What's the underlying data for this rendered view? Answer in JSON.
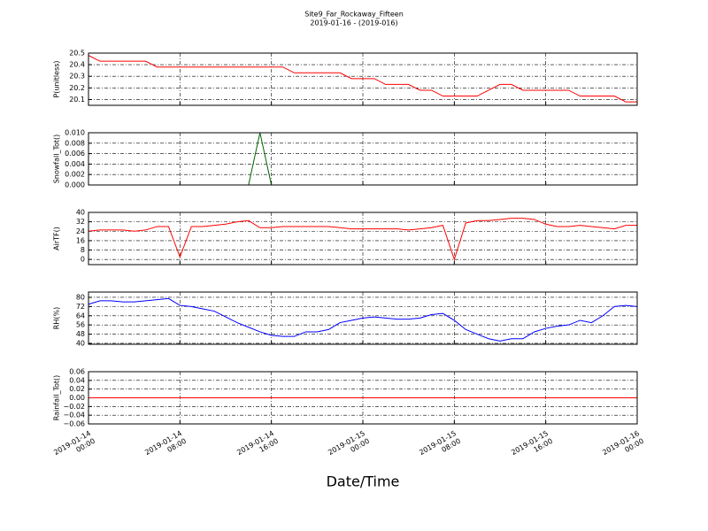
{
  "chart_data": [
    {
      "type": "line",
      "title": "Site9_Far_Rockaway_Fifteen",
      "subtitle": "2019-01-16 - (2019-016)",
      "ylabel": "P(unitless)",
      "color": "#ff0000",
      "x": [
        "2019-01-14 00:00",
        "2019-01-14 01:00",
        "2019-01-14 02:00",
        "2019-01-14 03:00",
        "2019-01-14 04:00",
        "2019-01-14 05:00",
        "2019-01-14 06:00",
        "2019-01-14 07:00",
        "2019-01-14 08:00",
        "2019-01-14 09:00",
        "2019-01-14 10:00",
        "2019-01-14 11:00",
        "2019-01-14 12:00",
        "2019-01-14 13:00",
        "2019-01-14 14:00",
        "2019-01-14 15:00",
        "2019-01-14 16:00",
        "2019-01-14 17:00",
        "2019-01-14 18:00",
        "2019-01-14 19:00",
        "2019-01-14 20:00",
        "2019-01-14 21:00",
        "2019-01-14 22:00",
        "2019-01-14 23:00",
        "2019-01-15 00:00",
        "2019-01-15 01:00",
        "2019-01-15 02:00",
        "2019-01-15 03:00",
        "2019-01-15 04:00",
        "2019-01-15 05:00",
        "2019-01-15 06:00",
        "2019-01-15 07:00",
        "2019-01-15 08:00",
        "2019-01-15 09:00",
        "2019-01-15 10:00",
        "2019-01-15 11:00",
        "2019-01-15 12:00",
        "2019-01-15 13:00",
        "2019-01-15 14:00",
        "2019-01-15 15:00",
        "2019-01-15 16:00",
        "2019-01-15 17:00",
        "2019-01-15 18:00",
        "2019-01-15 19:00",
        "2019-01-15 20:00",
        "2019-01-15 21:00",
        "2019-01-15 22:00",
        "2019-01-15 23:00",
        "2019-01-16 00:00"
      ],
      "values": [
        20.48,
        20.43,
        20.43,
        20.43,
        20.43,
        20.43,
        20.38,
        20.38,
        20.38,
        20.38,
        20.38,
        20.38,
        20.38,
        20.38,
        20.38,
        20.38,
        20.38,
        20.38,
        20.33,
        20.33,
        20.33,
        20.33,
        20.33,
        20.28,
        20.28,
        20.28,
        20.23,
        20.23,
        20.23,
        20.18,
        20.18,
        20.13,
        20.13,
        20.13,
        20.13,
        20.18,
        20.23,
        20.23,
        20.18,
        20.18,
        20.18,
        20.18,
        20.18,
        20.13,
        20.13,
        20.13,
        20.13,
        20.08,
        20.08
      ],
      "ylim": [
        20.05,
        20.5
      ],
      "yticks": [
        20.1,
        20.2,
        20.3,
        20.4,
        20.5
      ],
      "grid": true
    },
    {
      "type": "line",
      "ylabel": "Snowfall_Tot()",
      "color": "#006400",
      "x": [
        "2019-01-14 00:00",
        "2019-01-14 01:00",
        "2019-01-14 02:00",
        "2019-01-14 03:00",
        "2019-01-14 04:00",
        "2019-01-14 05:00",
        "2019-01-14 06:00",
        "2019-01-14 07:00",
        "2019-01-14 08:00",
        "2019-01-14 09:00",
        "2019-01-14 10:00",
        "2019-01-14 11:00",
        "2019-01-14 12:00",
        "2019-01-14 13:00",
        "2019-01-14 14:00",
        "2019-01-14 15:00",
        "2019-01-14 16:00",
        "2019-01-14 17:00",
        "2019-01-14 18:00",
        "2019-01-14 19:00",
        "2019-01-14 20:00",
        "2019-01-14 21:00",
        "2019-01-14 22:00",
        "2019-01-14 23:00",
        "2019-01-15 00:00",
        "2019-01-15 01:00",
        "2019-01-15 02:00",
        "2019-01-15 03:00",
        "2019-01-15 04:00",
        "2019-01-15 05:00",
        "2019-01-15 06:00",
        "2019-01-15 07:00",
        "2019-01-15 08:00",
        "2019-01-15 09:00",
        "2019-01-15 10:00",
        "2019-01-15 11:00",
        "2019-01-15 12:00",
        "2019-01-15 13:00",
        "2019-01-15 14:00",
        "2019-01-15 15:00",
        "2019-01-15 16:00",
        "2019-01-15 17:00",
        "2019-01-15 18:00",
        "2019-01-15 19:00",
        "2019-01-15 20:00",
        "2019-01-15 21:00",
        "2019-01-15 22:00",
        "2019-01-15 23:00",
        "2019-01-16 00:00"
      ],
      "values": [
        0,
        0,
        0,
        0,
        0,
        0,
        0,
        0,
        0,
        0,
        0,
        0,
        0,
        0,
        0,
        0.01,
        0,
        0,
        0,
        0,
        0,
        0,
        0,
        0,
        0,
        0,
        0,
        0,
        0,
        0,
        0,
        0,
        0,
        0,
        0,
        0,
        0,
        0,
        0,
        0,
        0,
        0,
        0,
        0,
        0,
        0,
        0,
        0,
        0
      ],
      "ylim": [
        0,
        0.01
      ],
      "yticks": [
        {
          "value": 0,
          "label": "0.000"
        },
        {
          "value": 0.002,
          "label": "0.002"
        },
        {
          "value": 0.004,
          "label": "0.004"
        },
        {
          "value": 0.006,
          "label": "0.006"
        },
        {
          "value": 0.008,
          "label": "0.008"
        },
        {
          "value": 0.01,
          "label": "0.010"
        }
      ],
      "grid": true
    },
    {
      "type": "line",
      "ylabel": "AirTF()",
      "color": "#ff0000",
      "x": [
        "2019-01-14 00:00",
        "2019-01-14 01:00",
        "2019-01-14 02:00",
        "2019-01-14 03:00",
        "2019-01-14 04:00",
        "2019-01-14 05:00",
        "2019-01-14 06:00",
        "2019-01-14 07:00",
        "2019-01-14 08:00",
        "2019-01-14 09:00",
        "2019-01-14 10:00",
        "2019-01-14 11:00",
        "2019-01-14 12:00",
        "2019-01-14 13:00",
        "2019-01-14 14:00",
        "2019-01-14 15:00",
        "2019-01-14 16:00",
        "2019-01-14 17:00",
        "2019-01-14 18:00",
        "2019-01-14 19:00",
        "2019-01-14 20:00",
        "2019-01-14 21:00",
        "2019-01-14 22:00",
        "2019-01-14 23:00",
        "2019-01-15 00:00",
        "2019-01-15 01:00",
        "2019-01-15 02:00",
        "2019-01-15 03:00",
        "2019-01-15 04:00",
        "2019-01-15 05:00",
        "2019-01-15 06:00",
        "2019-01-15 07:00",
        "2019-01-15 08:00",
        "2019-01-15 09:00",
        "2019-01-15 10:00",
        "2019-01-15 11:00",
        "2019-01-15 12:00",
        "2019-01-15 13:00",
        "2019-01-15 14:00",
        "2019-01-15 15:00",
        "2019-01-15 16:00",
        "2019-01-15 17:00",
        "2019-01-15 18:00",
        "2019-01-15 19:00",
        "2019-01-15 20:00",
        "2019-01-15 21:00",
        "2019-01-15 22:00",
        "2019-01-15 23:00",
        "2019-01-16 00:00"
      ],
      "values": [
        24,
        25,
        25,
        25,
        24,
        25,
        28,
        28,
        2,
        28,
        28,
        29,
        30,
        32,
        33,
        27,
        27,
        28,
        28,
        28,
        28,
        28,
        27,
        26,
        26,
        26,
        26,
        26,
        25,
        26,
        27,
        29,
        0,
        31,
        33,
        33,
        34,
        35,
        35,
        34,
        30,
        28,
        28,
        29,
        28,
        27,
        26,
        29,
        29
      ],
      "ylim": [
        -4.4,
        40
      ],
      "yticks": [
        0,
        8,
        16,
        24,
        32,
        40
      ],
      "grid": true
    },
    {
      "type": "line",
      "ylabel": "RH(%)",
      "color": "#0000ff",
      "x": [
        "2019-01-14 00:00",
        "2019-01-14 01:00",
        "2019-01-14 02:00",
        "2019-01-14 03:00",
        "2019-01-14 04:00",
        "2019-01-14 05:00",
        "2019-01-14 06:00",
        "2019-01-14 07:00",
        "2019-01-14 08:00",
        "2019-01-14 09:00",
        "2019-01-14 10:00",
        "2019-01-14 11:00",
        "2019-01-14 12:00",
        "2019-01-14 13:00",
        "2019-01-14 14:00",
        "2019-01-14 15:00",
        "2019-01-14 16:00",
        "2019-01-14 17:00",
        "2019-01-14 18:00",
        "2019-01-14 19:00",
        "2019-01-14 20:00",
        "2019-01-14 21:00",
        "2019-01-14 22:00",
        "2019-01-14 23:00",
        "2019-01-15 00:00",
        "2019-01-15 01:00",
        "2019-01-15 02:00",
        "2019-01-15 03:00",
        "2019-01-15 04:00",
        "2019-01-15 05:00",
        "2019-01-15 06:00",
        "2019-01-15 07:00",
        "2019-01-15 08:00",
        "2019-01-15 09:00",
        "2019-01-15 10:00",
        "2019-01-15 11:00",
        "2019-01-15 12:00",
        "2019-01-15 13:00",
        "2019-01-15 14:00",
        "2019-01-15 15:00",
        "2019-01-15 16:00",
        "2019-01-15 17:00",
        "2019-01-15 18:00",
        "2019-01-15 19:00",
        "2019-01-15 20:00",
        "2019-01-15 21:00",
        "2019-01-15 22:00",
        "2019-01-15 23:00",
        "2019-01-16 00:00"
      ],
      "values": [
        74,
        77,
        77,
        76,
        76,
        77,
        78,
        79,
        73,
        72,
        70,
        68,
        63,
        58,
        54,
        50,
        47,
        46,
        46,
        50,
        50,
        52,
        58,
        60,
        62,
        63,
        62,
        61,
        61,
        62,
        65,
        66,
        60,
        52,
        48,
        44,
        42,
        44,
        44,
        50,
        53,
        55,
        56,
        60,
        58,
        64,
        72,
        73,
        72
      ],
      "ylim": [
        39.2,
        84.6
      ],
      "yticks": [
        40,
        48,
        56,
        64,
        72,
        80
      ],
      "grid": true
    },
    {
      "type": "line",
      "ylabel": "Rainfall_Tot()",
      "color": "#ff0000",
      "xlabel": "Date/Time",
      "x": [
        "2019-01-14 00:00",
        "2019-01-14 01:00",
        "2019-01-14 02:00",
        "2019-01-14 03:00",
        "2019-01-14 04:00",
        "2019-01-14 05:00",
        "2019-01-14 06:00",
        "2019-01-14 07:00",
        "2019-01-14 08:00",
        "2019-01-14 09:00",
        "2019-01-14 10:00",
        "2019-01-14 11:00",
        "2019-01-14 12:00",
        "2019-01-14 13:00",
        "2019-01-14 14:00",
        "2019-01-14 15:00",
        "2019-01-14 16:00",
        "2019-01-14 17:00",
        "2019-01-14 18:00",
        "2019-01-14 19:00",
        "2019-01-14 20:00",
        "2019-01-14 21:00",
        "2019-01-14 22:00",
        "2019-01-14 23:00",
        "2019-01-15 00:00",
        "2019-01-15 01:00",
        "2019-01-15 02:00",
        "2019-01-15 03:00",
        "2019-01-15 04:00",
        "2019-01-15 05:00",
        "2019-01-15 06:00",
        "2019-01-15 07:00",
        "2019-01-15 08:00",
        "2019-01-15 09:00",
        "2019-01-15 10:00",
        "2019-01-15 11:00",
        "2019-01-15 12:00",
        "2019-01-15 13:00",
        "2019-01-15 14:00",
        "2019-01-15 15:00",
        "2019-01-15 16:00",
        "2019-01-15 17:00",
        "2019-01-15 18:00",
        "2019-01-15 19:00",
        "2019-01-15 20:00",
        "2019-01-15 21:00",
        "2019-01-15 22:00",
        "2019-01-15 23:00",
        "2019-01-16 00:00"
      ],
      "values": [
        0,
        0,
        0,
        0,
        0,
        0,
        0,
        0,
        0,
        0,
        0,
        0,
        0,
        0,
        0,
        0,
        0,
        0,
        0,
        0,
        0,
        0,
        0,
        0,
        0,
        0,
        0,
        0,
        0,
        0,
        0,
        0,
        0,
        0,
        0,
        0,
        0,
        0,
        0,
        0,
        0,
        0,
        0,
        0,
        0,
        0,
        0,
        0,
        0
      ],
      "ylim": [
        -0.06,
        0.06
      ],
      "yticks": [
        {
          "value": -0.06,
          "label": "−0.06"
        },
        {
          "value": -0.04,
          "label": "−0.04"
        },
        {
          "value": -0.02,
          "label": "−0.02"
        },
        {
          "value": 0,
          "label": "0.00"
        },
        {
          "value": 0.02,
          "label": "0.02"
        },
        {
          "value": 0.04,
          "label": "0.04"
        },
        {
          "value": 0.06,
          "label": "0.06"
        }
      ],
      "grid": true,
      "xlim": [
        "2019-01-14 00:00",
        "2019-01-16 00:00"
      ],
      "xticks": [
        {
          "value": "2019-01-14 00:00",
          "label": "2019-01-14\n00:00"
        },
        {
          "value": "2019-01-14 08:00",
          "label": "2019-01-14\n08:00"
        },
        {
          "value": "2019-01-14 16:00",
          "label": "2019-01-14\n16:00"
        },
        {
          "value": "2019-01-15 00:00",
          "label": "2019-01-15\n00:00"
        },
        {
          "value": "2019-01-15 08:00",
          "label": "2019-01-15\n08:00"
        },
        {
          "value": "2019-01-15 16:00",
          "label": "2019-01-15\n16:00"
        },
        {
          "value": "2019-01-16 00:00",
          "label": "2019-01-16\n00:00"
        }
      ]
    }
  ]
}
